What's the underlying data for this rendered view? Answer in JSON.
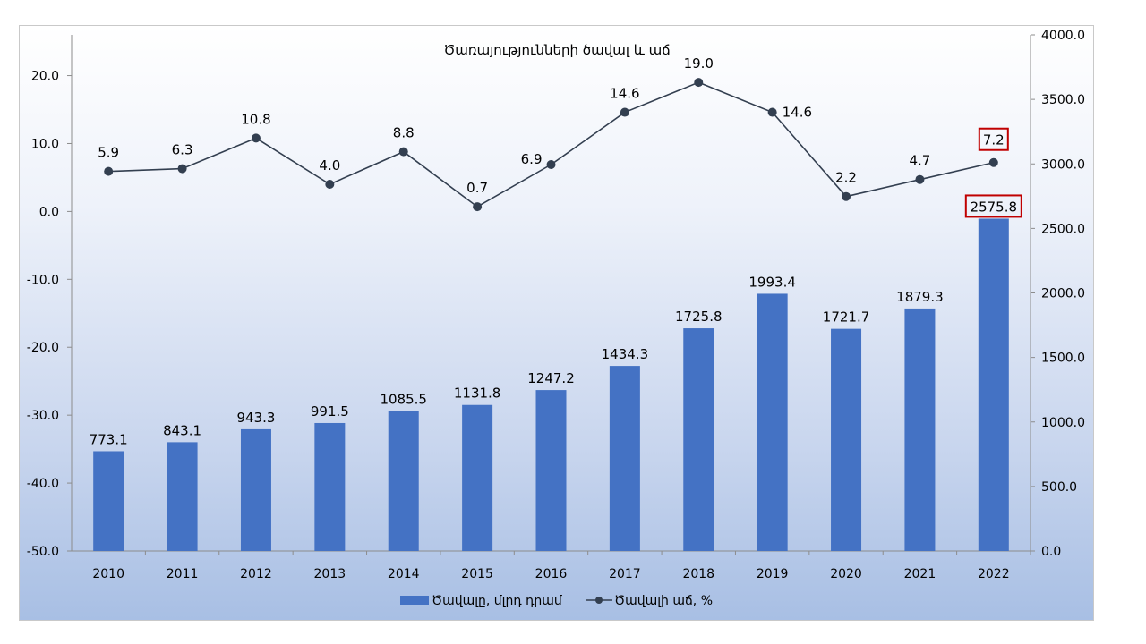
{
  "chart_data": {
    "type": "bar",
    "title": "Ծառայությունների ծավալ և աճ",
    "categories": [
      "2010",
      "2011",
      "2012",
      "2013",
      "2014",
      "2015",
      "2016",
      "2017",
      "2018",
      "2019",
      "2020",
      "2021",
      "2022"
    ],
    "series": [
      {
        "name": "Ծավալը, մլրդ դրամ",
        "type": "bar",
        "axis": "right",
        "color": "#4472c4",
        "values": [
          773.1,
          843.1,
          943.3,
          991.5,
          1085.5,
          1131.8,
          1247.2,
          1434.3,
          1725.8,
          1993.4,
          1721.7,
          1879.3,
          2575.8
        ],
        "labels": [
          "773.1",
          "843.1",
          "943.3",
          "991.5",
          "1085.5",
          "1131.8",
          "1247.2",
          "1434.3",
          "1725.8",
          "1993.4",
          "1721.7",
          "1879.3",
          "2575.8"
        ]
      },
      {
        "name": "Ծավալի աճ, %",
        "type": "line",
        "axis": "left",
        "color": "#333f50",
        "values": [
          5.9,
          6.3,
          10.8,
          4.0,
          8.8,
          0.7,
          6.9,
          14.6,
          19.0,
          14.6,
          2.2,
          4.7,
          7.2
        ],
        "labels": [
          "5.9",
          "6.3",
          "10.8",
          "4.0",
          "8.8",
          "0.7",
          "6.9",
          "14.6",
          "19.0",
          "14.6",
          "2.2",
          "4.7",
          "7.2"
        ]
      }
    ],
    "left_axis": {
      "ylim": [
        -50,
        26
      ],
      "ticks": [
        20,
        10,
        0,
        -10,
        -20,
        -30,
        -40,
        -50
      ],
      "tick_labels": [
        "20.0",
        "10.0",
        "0.0",
        "-10.0",
        "-20.0",
        "-30.0",
        "-40.0",
        "-50.0"
      ]
    },
    "right_axis": {
      "ylim": [
        0,
        4000
      ],
      "ticks": [
        4000,
        3500,
        3000,
        2500,
        2000,
        1500,
        1000,
        500,
        0
      ],
      "tick_labels": [
        "4000.0",
        "3500.0",
        "3000.0",
        "2500.0",
        "2000.0",
        "1500.0",
        "1000.0",
        "500.0",
        "0.0"
      ]
    },
    "highlight": {
      "category": "2022",
      "border_color": "#c00000"
    },
    "legend_position": "bottom",
    "grid": false
  }
}
